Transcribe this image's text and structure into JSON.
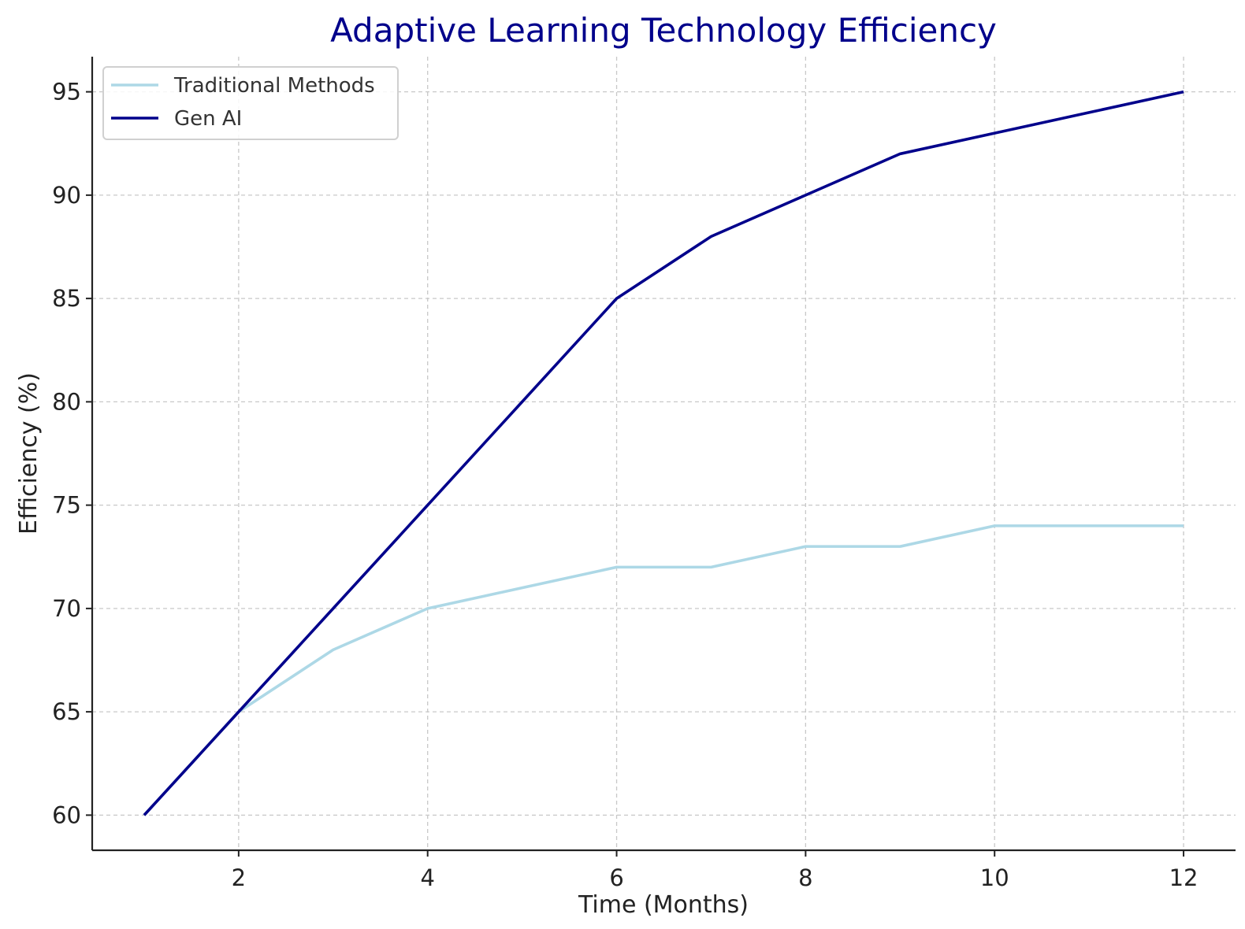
{
  "chart_data": {
    "type": "line",
    "title": "Adaptive Learning Technology Efficiency",
    "xlabel": "Time (Months)",
    "ylabel": "Efficiency (%)",
    "x": [
      1,
      2,
      3,
      4,
      5,
      6,
      7,
      8,
      9,
      10,
      11,
      12
    ],
    "xticks": [
      2,
      4,
      6,
      8,
      10,
      12
    ],
    "yticks": [
      60,
      65,
      70,
      75,
      80,
      85,
      90,
      95
    ],
    "xlim": [
      0.45,
      12.55
    ],
    "ylim": [
      58.3,
      96.7
    ],
    "grid": true,
    "legend_position": "top-left",
    "series": [
      {
        "name": "Traditional Methods",
        "color": "#add8e6",
        "values": [
          60,
          65,
          68,
          70,
          71,
          72,
          72,
          73,
          73,
          74,
          74,
          74
        ]
      },
      {
        "name": "Gen AI",
        "color": "#00008b",
        "values": [
          60,
          65,
          70,
          75,
          80,
          85,
          88,
          90,
          92,
          93,
          94,
          95
        ]
      }
    ]
  }
}
